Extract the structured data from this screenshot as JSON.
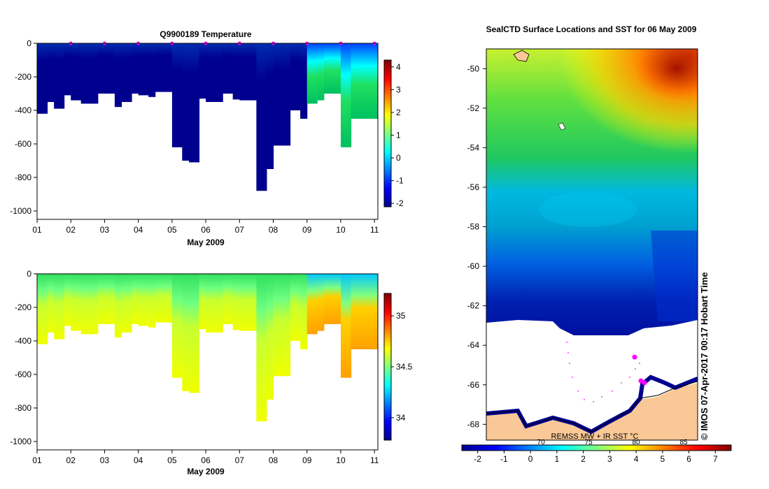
{
  "colors": {
    "jet": [
      "#00008f",
      "#0000ff",
      "#0080ff",
      "#00ffff",
      "#80ff80",
      "#ffff00",
      "#ff8000",
      "#ff0000",
      "#800000"
    ],
    "land": "#fac896",
    "ice": "#ffffff",
    "coast": "#00008f",
    "marker": "#ff00ff"
  },
  "chart_data": [
    {
      "id": "temperature",
      "type": "heatmap",
      "title": "Q9900189  Temperature",
      "xlabel": "May 2009",
      "ylabel": "",
      "xlim": [
        1,
        11.1
      ],
      "ylim": [
        -1050,
        0
      ],
      "xticks": [
        "01",
        "02",
        "03",
        "04",
        "05",
        "06",
        "07",
        "08",
        "09",
        "10",
        "11"
      ],
      "yticks": [
        0,
        -200,
        -400,
        -600,
        -800,
        -1000
      ],
      "colorbar": {
        "min": -2.15,
        "max": 4.3,
        "ticks": [
          4,
          3,
          2,
          1,
          0,
          -1,
          -2
        ]
      },
      "profile_times": [
        1.0,
        1.3,
        1.5,
        1.8,
        2.0,
        2.3,
        2.5,
        2.8,
        3.0,
        3.3,
        3.5,
        3.8,
        4.0,
        4.3,
        4.5,
        4.8,
        5.0,
        5.3,
        5.5,
        5.8,
        6.0,
        6.3,
        6.5,
        6.8,
        7.0,
        7.3,
        7.5,
        7.8,
        8.0,
        8.3,
        8.5,
        8.8,
        9.0,
        9.3,
        9.5,
        9.8,
        10.0,
        10.3,
        10.5,
        10.8
      ],
      "profile_max_depth": [
        -420,
        -350,
        -390,
        -310,
        -340,
        -360,
        -360,
        -300,
        -300,
        -380,
        -350,
        -300,
        -310,
        -320,
        -290,
        -290,
        -620,
        -700,
        -710,
        -330,
        -350,
        -350,
        -300,
        -335,
        -340,
        -340,
        -880,
        -750,
        -610,
        -610,
        -400,
        -450,
        -360,
        -340,
        -300,
        -300,
        -620,
        -450,
        -450,
        -450
      ],
      "surface_markers": [
        2,
        3,
        4,
        5,
        6,
        7,
        8,
        9,
        10,
        11
      ]
    },
    {
      "id": "salinity",
      "type": "heatmap",
      "title": "",
      "xlabel": "May 2009",
      "ylabel": "",
      "xlim": [
        1,
        11.1
      ],
      "ylim": [
        -1050,
        0
      ],
      "xticks": [
        "01",
        "02",
        "03",
        "04",
        "05",
        "06",
        "07",
        "08",
        "09",
        "10",
        "11"
      ],
      "yticks": [
        0,
        -200,
        -400,
        -600,
        -800,
        -1000
      ],
      "colorbar": {
        "min": 33.78,
        "max": 35.22,
        "ticks": [
          35,
          34.5,
          34
        ]
      },
      "profile_times": [
        1.0,
        1.3,
        1.5,
        1.8,
        2.0,
        2.3,
        2.5,
        2.8,
        3.0,
        3.3,
        3.5,
        3.8,
        4.0,
        4.3,
        4.5,
        4.8,
        5.0,
        5.3,
        5.5,
        5.8,
        6.0,
        6.3,
        6.5,
        6.8,
        7.0,
        7.3,
        7.5,
        7.8,
        8.0,
        8.3,
        8.5,
        8.8,
        9.0,
        9.3,
        9.5,
        9.8,
        10.0,
        10.3,
        10.5,
        10.8
      ],
      "profile_max_depth": [
        -420,
        -350,
        -390,
        -310,
        -340,
        -360,
        -360,
        -300,
        -300,
        -380,
        -350,
        -300,
        -310,
        -320,
        -290,
        -290,
        -620,
        -700,
        -710,
        -330,
        -350,
        -350,
        -300,
        -335,
        -340,
        -340,
        -880,
        -750,
        -610,
        -610,
        -400,
        -450,
        -360,
        -340,
        -300,
        -300,
        -620,
        -450,
        -450,
        -450
      ]
    },
    {
      "id": "sst-map",
      "type": "heatmap",
      "title": "SealCTD Surface Locations and SST for 06 May 2009",
      "ylim": [
        -68.8,
        -49.0
      ],
      "yticks": [
        -50,
        -52,
        -54,
        -56,
        -58,
        -60,
        -62,
        -64,
        -66,
        -68
      ],
      "colorbar": {
        "min": -2.6,
        "max": 7.6,
        "ticks": [
          -2,
          -1,
          0,
          1,
          2,
          3,
          4,
          5,
          6,
          7
        ],
        "secondary_ticks": [
          "70",
          "75",
          "80",
          "85"
        ],
        "secondary_positions": [
          0.4,
          2.2,
          4.0,
          5.8
        ]
      },
      "source_label": "REMSS MW + IR SST °C",
      "side_label": "© IMOS 07-Apr-2017 00:17 Hobart Time",
      "tag_positions_lat": [
        -64.6,
        -65.8,
        -65.9
      ]
    }
  ]
}
